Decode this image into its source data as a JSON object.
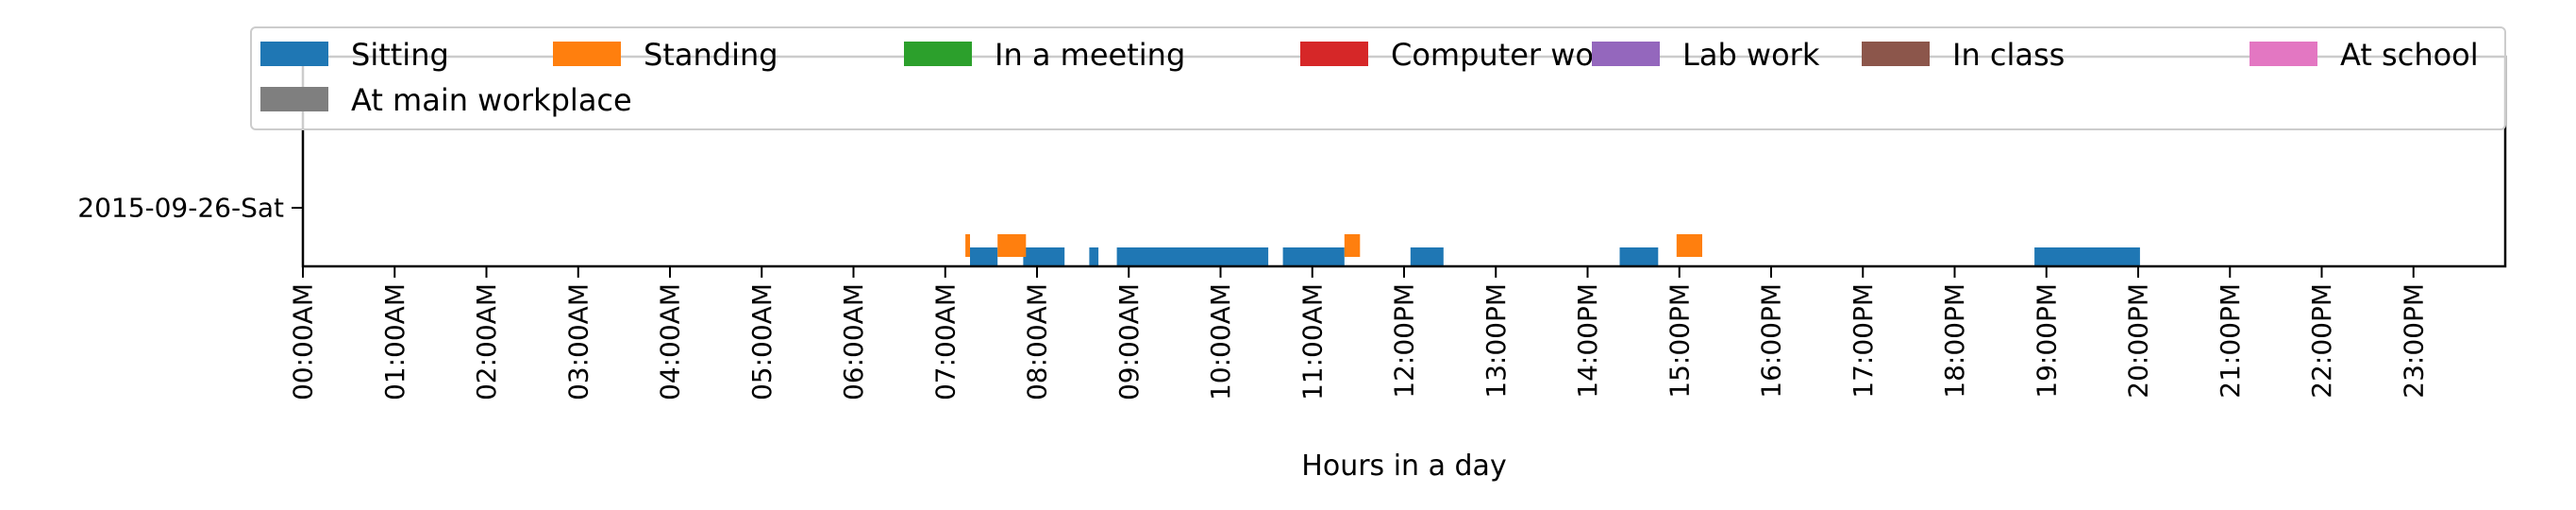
{
  "chart_data": {
    "type": "bar",
    "orientation": "horizontal-timeline",
    "xlabel": "Hours in a day",
    "xlim": [
      0,
      24
    ],
    "x_ticks": [
      0,
      1,
      2,
      3,
      4,
      5,
      6,
      7,
      8,
      9,
      10,
      11,
      12,
      13,
      14,
      15,
      16,
      17,
      18,
      19,
      20,
      21,
      22,
      23
    ],
    "x_tick_labels": [
      "00:00AM",
      "01:00AM",
      "02:00AM",
      "03:00AM",
      "04:00AM",
      "05:00AM",
      "06:00AM",
      "07:00AM",
      "08:00AM",
      "09:00AM",
      "10:00AM",
      "11:00AM",
      "12:00PM",
      "13:00PM",
      "14:00PM",
      "15:00PM",
      "16:00PM",
      "17:00PM",
      "18:00PM",
      "19:00PM",
      "20:00PM",
      "21:00PM",
      "22:00PM",
      "23:00PM"
    ],
    "categories": [
      "2015-09-26-Sat"
    ],
    "grid": false,
    "legend_position": "top",
    "series": [
      {
        "name": "Sitting",
        "color": "#1f77b4",
        "segments": [
          [
            7.27,
            7.57
          ],
          [
            7.85,
            8.3
          ],
          [
            8.57,
            8.67
          ],
          [
            8.87,
            10.52
          ],
          [
            10.68,
            11.35
          ],
          [
            12.07,
            12.43
          ],
          [
            14.35,
            14.77
          ],
          [
            18.87,
            20.02
          ]
        ]
      },
      {
        "name": "Standing",
        "color": "#ff7f0e",
        "segments": [
          [
            7.22,
            7.27
          ],
          [
            7.57,
            7.88
          ],
          [
            11.35,
            11.52
          ],
          [
            14.97,
            15.25
          ]
        ]
      },
      {
        "name": "In a meeting",
        "color": "#2ca02c",
        "segments": []
      },
      {
        "name": "Computer work",
        "color": "#d62728",
        "segments": []
      },
      {
        "name": "Lab work",
        "color": "#9467bd",
        "segments": []
      },
      {
        "name": "In class",
        "color": "#8c564b",
        "segments": []
      },
      {
        "name": "At school",
        "color": "#e377c2",
        "segments": []
      },
      {
        "name": "At main workplace",
        "color": "#7f7f7f",
        "segments": []
      }
    ]
  }
}
